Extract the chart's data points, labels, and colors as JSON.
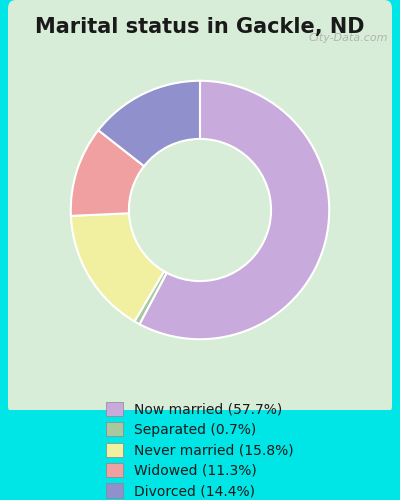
{
  "title": "Marital status in Gackle, ND",
  "slices": [
    57.7,
    0.7,
    15.8,
    11.3,
    14.4
  ],
  "labels": [
    "Now married (57.7%)",
    "Separated (0.7%)",
    "Never married (15.8%)",
    "Widowed (11.3%)",
    "Divorced (14.4%)"
  ],
  "colors": [
    "#C9AADD",
    "#A8C8A0",
    "#F0F0A0",
    "#F0A0A0",
    "#9090CC"
  ],
  "bg_outer": "#00E5E5",
  "bg_inner": "#D8EDD8",
  "title_color": "#1a1a1a",
  "title_fontsize": 15,
  "legend_fontsize": 10,
  "watermark": "City-Data.com",
  "start_angle": 90
}
